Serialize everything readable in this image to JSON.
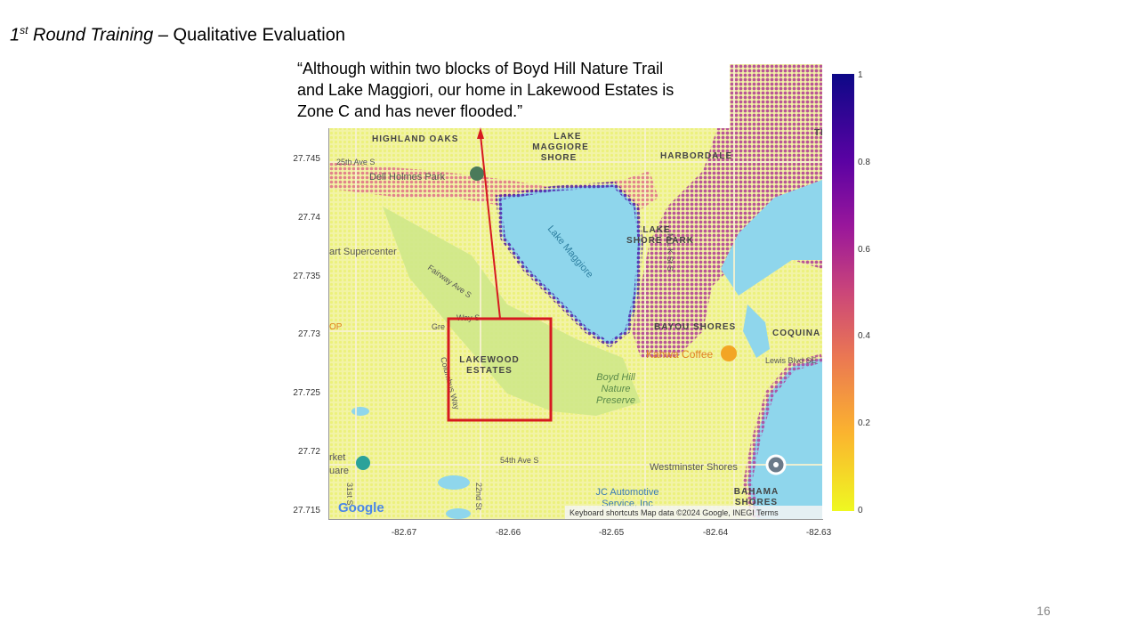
{
  "slide": {
    "title_part1_num": "1",
    "title_part1_sup": "st",
    "title_part1_rest": " Round Training",
    "title_dash": " – ",
    "title_part2": "Qualitative Evaluation",
    "page_number": "16"
  },
  "quote": {
    "lines": [
      "“Although within two blocks of Boyd Hill Nature Trail",
      "and Lake Maggiori, our home in Lakewood Estates is",
      "Zone C and has never flooded.”"
    ]
  },
  "axes": {
    "y_ticks": [
      "27.745",
      "27.74",
      "27.735",
      "27.73",
      "27.725",
      "27.72",
      "27.715"
    ],
    "x_ticks": [
      "-82.67",
      "-82.66",
      "-82.65",
      "-82.64",
      "-82.63"
    ]
  },
  "colorbar": {
    "ticks": [
      "1",
      "0.8",
      "0.6",
      "0.4",
      "0.2",
      "0"
    ],
    "colors": [
      "#0d0887",
      "#9a179b",
      "#cb4679",
      "#eb7852",
      "#fbb32f",
      "#eff821"
    ]
  },
  "map_labels": {
    "highland_oaks": "HIGHLAND OAKS",
    "lake_maggiore_shore": [
      "LAKE",
      "MAGGIORE",
      "SHORE"
    ],
    "harbordale": "HARBORDALE",
    "ave_25": "25th Ave S",
    "dell_holmes": "Dell Holmes Park",
    "lake_maggiore": "Lake Maggiore",
    "lake_shore_park": [
      "LAKE",
      "SHORE PARK"
    ],
    "supercenter": "art Supercenter",
    "fairway": "Fairway Ave S",
    "bayou_shores": "BAYOU SHORES",
    "coquina": "COQUINA",
    "kahwa": "Kahwa Coffee",
    "lewis_blvd": "Lewis Blvd SE",
    "lakewood_estates": [
      "LAKEWOOD",
      "ESTATES"
    ],
    "boyd_hill": [
      "Boyd Hill",
      "Nature",
      "Preserve"
    ],
    "ave_54": "54th Ave S",
    "westminster": "Westminster Shores",
    "jc_auto": [
      "JC Automotive",
      "Service, Inc"
    ],
    "bahama": [
      "BAHAMA",
      "SHORES"
    ],
    "st_22": "22nd St",
    "st_31": "31st S",
    "google": "Google",
    "attribution": "Keyboard shortcuts   Map data ©2024 Google, INEGI   Terms",
    "market": "rket",
    "uare": "uare",
    "op": "OP",
    "gre": "Gre",
    "way_s": "Way S",
    "colum": "Columbus Way",
    "mlk": "M L K St S",
    "tr": "TR"
  }
}
